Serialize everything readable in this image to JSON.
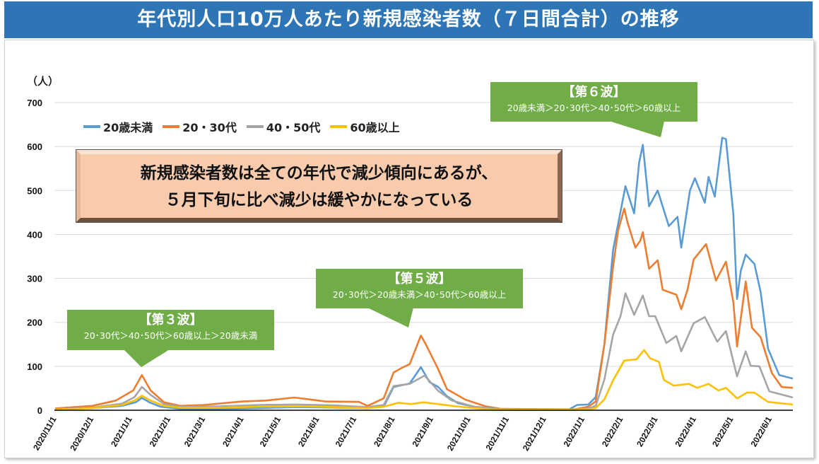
{
  "title": "年代別人口10万人あたり新規感染者数（７日間合計）の推移",
  "message": {
    "line1": "新規感染者数は全ての年代で減少傾向にあるが、",
    "line2": "５月下旬に比べ減少は緩やかになっている"
  },
  "callouts": [
    {
      "heading": "【第３波】",
      "sub": "20･30代＞40･50代＞60歳以上＞20歳未満"
    },
    {
      "heading": "【第５波】",
      "sub": "20･30代＞20歳未満＞40･50代＞60歳以上"
    },
    {
      "heading": "【第６波】",
      "sub": "20歳未満＞20･30代＞40･50代＞60歳以上"
    }
  ],
  "chart_data": {
    "type": "line",
    "title": "年代別人口10万人あたり新規感染者数（７日間合計）の推移",
    "ylabel": "（人）",
    "xlabel": "",
    "ylim": [
      0,
      700
    ],
    "yticks": [
      0,
      100,
      200,
      300,
      400,
      500,
      600,
      700
    ],
    "xlim": [
      "2020-11-01",
      "2022-06-19"
    ],
    "xtick_labels": [
      "2020/11/1",
      "2020/12/1",
      "2021/1/1",
      "2021/2/1",
      "2021/3/1",
      "2021/4/1",
      "2021/5/1",
      "2021/6/1",
      "2021/7/1",
      "2021/8/1",
      "2021/9/1",
      "2021/10/1",
      "2021/11/1",
      "2021/12/1",
      "2022/1/1",
      "2022/2/1",
      "2022/3/1",
      "2022/4/1",
      "2022/5/1",
      "2022/6/1"
    ],
    "xticks": [
      "2020-11-01",
      "2020-12-01",
      "2021-01-01",
      "2021-02-01",
      "2021-03-01",
      "2021-04-01",
      "2021-05-01",
      "2021-06-01",
      "2021-07-01",
      "2021-08-01",
      "2021-09-01",
      "2021-10-01",
      "2021-11-01",
      "2021-12-01",
      "2022-01-01",
      "2022-02-01",
      "2022-03-01",
      "2022-04-01",
      "2022-05-01",
      "2022-06-01"
    ],
    "grid": true,
    "legend": "top-left",
    "series": [
      {
        "name": "20歳未満",
        "color": "#5b9bd5",
        "points": [
          [
            "2020-11-01",
            2
          ],
          [
            "2020-12-01",
            5
          ],
          [
            "2020-12-25",
            10
          ],
          [
            "2021-01-05",
            18
          ],
          [
            "2021-01-10",
            28
          ],
          [
            "2021-01-16",
            18
          ],
          [
            "2021-01-25",
            8
          ],
          [
            "2021-02-10",
            3
          ],
          [
            "2021-03-15",
            3
          ],
          [
            "2021-04-15",
            5
          ],
          [
            "2021-05-15",
            7
          ],
          [
            "2021-06-15",
            6
          ],
          [
            "2021-07-11",
            5
          ],
          [
            "2021-07-24",
            8
          ],
          [
            "2021-08-01",
            53
          ],
          [
            "2021-08-14",
            61
          ],
          [
            "2021-08-23",
            98
          ],
          [
            "2021-08-30",
            64
          ],
          [
            "2021-09-06",
            53
          ],
          [
            "2021-09-13",
            32
          ],
          [
            "2021-09-22",
            16
          ],
          [
            "2021-10-10",
            5
          ],
          [
            "2021-10-30",
            1
          ],
          [
            "2021-12-20",
            1
          ],
          [
            "2021-12-27",
            12
          ],
          [
            "2022-01-05",
            13
          ],
          [
            "2022-01-11",
            30
          ],
          [
            "2022-01-18",
            150
          ],
          [
            "2022-01-25",
            365
          ],
          [
            "2022-02-04",
            510
          ],
          [
            "2022-02-11",
            448
          ],
          [
            "2022-02-15",
            563
          ],
          [
            "2022-02-18",
            604
          ],
          [
            "2022-02-23",
            464
          ],
          [
            "2022-03-02",
            500
          ],
          [
            "2022-03-11",
            419
          ],
          [
            "2022-03-18",
            440
          ],
          [
            "2022-03-21",
            370
          ],
          [
            "2022-03-28",
            500
          ],
          [
            "2022-04-01",
            528
          ],
          [
            "2022-04-09",
            472
          ],
          [
            "2022-04-12",
            531
          ],
          [
            "2022-04-17",
            486
          ],
          [
            "2022-04-23",
            620
          ],
          [
            "2022-04-26",
            617
          ],
          [
            "2022-05-02",
            446
          ],
          [
            "2022-05-05",
            253
          ],
          [
            "2022-05-08",
            317
          ],
          [
            "2022-05-12",
            354
          ],
          [
            "2022-05-19",
            333
          ],
          [
            "2022-05-24",
            269
          ],
          [
            "2022-05-30",
            140
          ],
          [
            "2022-06-08",
            80
          ],
          [
            "2022-06-19",
            72
          ]
        ]
      },
      {
        "name": "20・30代",
        "color": "#ed7d31",
        "points": [
          [
            "2020-11-01",
            4
          ],
          [
            "2020-12-01",
            10
          ],
          [
            "2020-12-20",
            22
          ],
          [
            "2021-01-03",
            45
          ],
          [
            "2021-01-10",
            80
          ],
          [
            "2021-01-17",
            45
          ],
          [
            "2021-01-28",
            18
          ],
          [
            "2021-02-10",
            10
          ],
          [
            "2021-03-01",
            12
          ],
          [
            "2021-04-01",
            20
          ],
          [
            "2021-04-20",
            22
          ],
          [
            "2021-05-13",
            29
          ],
          [
            "2021-06-07",
            20
          ],
          [
            "2021-07-04",
            19
          ],
          [
            "2021-07-11",
            10
          ],
          [
            "2021-07-24",
            27
          ],
          [
            "2021-08-01",
            86
          ],
          [
            "2021-08-08",
            97
          ],
          [
            "2021-08-14",
            105
          ],
          [
            "2021-08-23",
            170
          ],
          [
            "2021-08-27",
            150
          ],
          [
            "2021-09-06",
            93
          ],
          [
            "2021-09-13",
            48
          ],
          [
            "2021-09-28",
            24
          ],
          [
            "2021-10-14",
            9
          ],
          [
            "2021-10-27",
            3
          ],
          [
            "2021-12-25",
            2
          ],
          [
            "2022-01-05",
            8
          ],
          [
            "2022-01-11",
            20
          ],
          [
            "2022-01-18",
            150
          ],
          [
            "2022-01-25",
            327
          ],
          [
            "2022-01-29",
            408
          ],
          [
            "2022-02-03",
            459
          ],
          [
            "2022-02-06",
            424
          ],
          [
            "2022-02-12",
            370
          ],
          [
            "2022-02-16",
            386
          ],
          [
            "2022-02-18",
            405
          ],
          [
            "2022-02-23",
            322
          ],
          [
            "2022-03-02",
            341
          ],
          [
            "2022-03-06",
            274
          ],
          [
            "2022-03-17",
            263
          ],
          [
            "2022-03-21",
            230
          ],
          [
            "2022-03-26",
            274
          ],
          [
            "2022-03-31",
            343
          ],
          [
            "2022-04-10",
            378
          ],
          [
            "2022-04-18",
            295
          ],
          [
            "2022-04-26",
            338
          ],
          [
            "2022-05-02",
            246
          ],
          [
            "2022-05-05",
            145
          ],
          [
            "2022-05-12",
            293
          ],
          [
            "2022-05-17",
            188
          ],
          [
            "2022-05-24",
            166
          ],
          [
            "2022-06-02",
            85
          ],
          [
            "2022-06-10",
            53
          ],
          [
            "2022-06-19",
            51
          ]
        ]
      },
      {
        "name": "40・50代",
        "color": "#a5a5a5",
        "points": [
          [
            "2020-11-01",
            2
          ],
          [
            "2020-12-01",
            6
          ],
          [
            "2020-12-25",
            15
          ],
          [
            "2021-01-04",
            30
          ],
          [
            "2021-01-10",
            53
          ],
          [
            "2021-01-17",
            35
          ],
          [
            "2021-01-28",
            14
          ],
          [
            "2021-02-10",
            8
          ],
          [
            "2021-03-15",
            9
          ],
          [
            "2021-04-15",
            12
          ],
          [
            "2021-05-15",
            13
          ],
          [
            "2021-06-15",
            11
          ],
          [
            "2021-07-11",
            7
          ],
          [
            "2021-07-24",
            12
          ],
          [
            "2021-08-01",
            55
          ],
          [
            "2021-08-14",
            60
          ],
          [
            "2021-08-26",
            79
          ],
          [
            "2021-09-06",
            44
          ],
          [
            "2021-09-17",
            22
          ],
          [
            "2021-10-05",
            8
          ],
          [
            "2021-10-30",
            2
          ],
          [
            "2021-12-25",
            1
          ],
          [
            "2022-01-05",
            4
          ],
          [
            "2022-01-11",
            10
          ],
          [
            "2022-01-18",
            70
          ],
          [
            "2022-01-25",
            172
          ],
          [
            "2022-01-31",
            214
          ],
          [
            "2022-02-04",
            266
          ],
          [
            "2022-02-11",
            217
          ],
          [
            "2022-02-18",
            261
          ],
          [
            "2022-02-23",
            214
          ],
          [
            "2022-02-28",
            214
          ],
          [
            "2022-03-09",
            153
          ],
          [
            "2022-03-17",
            169
          ],
          [
            "2022-03-21",
            134
          ],
          [
            "2022-03-31",
            198
          ],
          [
            "2022-04-09",
            212
          ],
          [
            "2022-04-19",
            156
          ],
          [
            "2022-04-26",
            180
          ],
          [
            "2022-05-05",
            77
          ],
          [
            "2022-05-12",
            134
          ],
          [
            "2022-05-16",
            101
          ],
          [
            "2022-05-23",
            100
          ],
          [
            "2022-05-31",
            43
          ],
          [
            "2022-06-19",
            29
          ]
        ]
      },
      {
        "name": "60歳以上",
        "color": "#ffc000",
        "points": [
          [
            "2020-11-01",
            1
          ],
          [
            "2020-12-01",
            5
          ],
          [
            "2020-12-25",
            12
          ],
          [
            "2021-01-04",
            22
          ],
          [
            "2021-01-10",
            33
          ],
          [
            "2021-01-17",
            22
          ],
          [
            "2021-01-28",
            10
          ],
          [
            "2021-02-10",
            6
          ],
          [
            "2021-03-15",
            6
          ],
          [
            "2021-04-15",
            8
          ],
          [
            "2021-05-15",
            9
          ],
          [
            "2021-06-15",
            7
          ],
          [
            "2021-07-11",
            5
          ],
          [
            "2021-07-24",
            8
          ],
          [
            "2021-08-05",
            17
          ],
          [
            "2021-08-15",
            14
          ],
          [
            "2021-08-25",
            18
          ],
          [
            "2021-09-06",
            14
          ],
          [
            "2021-09-20",
            9
          ],
          [
            "2021-10-20",
            1
          ],
          [
            "2021-12-25",
            1
          ],
          [
            "2022-01-05",
            2
          ],
          [
            "2022-01-11",
            5
          ],
          [
            "2022-01-18",
            25
          ],
          [
            "2022-01-25",
            68
          ],
          [
            "2022-02-03",
            113
          ],
          [
            "2022-02-13",
            116
          ],
          [
            "2022-02-19",
            137
          ],
          [
            "2022-02-24",
            118
          ],
          [
            "2022-03-03",
            110
          ],
          [
            "2022-03-07",
            69
          ],
          [
            "2022-03-15",
            56
          ],
          [
            "2022-03-27",
            60
          ],
          [
            "2022-04-03",
            51
          ],
          [
            "2022-04-12",
            60
          ],
          [
            "2022-04-20",
            45
          ],
          [
            "2022-04-26",
            51
          ],
          [
            "2022-05-05",
            27
          ],
          [
            "2022-05-13",
            40
          ],
          [
            "2022-05-19",
            40
          ],
          [
            "2022-05-30",
            19
          ],
          [
            "2022-06-19",
            13
          ]
        ]
      }
    ]
  }
}
